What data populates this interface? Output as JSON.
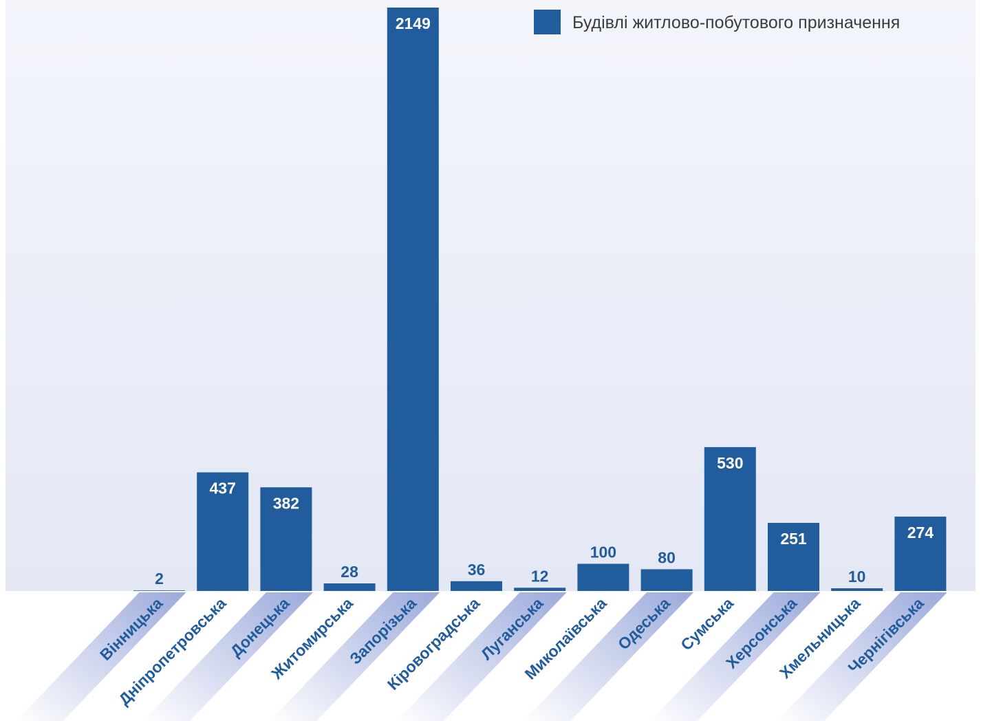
{
  "colors": {
    "bar": "#215c9c",
    "plot_bg_top": "#f3f5fb",
    "plot_bg_bottom": "#e4e8f5",
    "label_band": "#9caadb",
    "value_inside": "#ffffff",
    "value_outside": "#215c9c"
  },
  "chart_data": {
    "type": "bar",
    "title": "",
    "xlabel": "",
    "ylabel": "",
    "ylim": [
      0,
      2149
    ],
    "grid": false,
    "legend_position": "top-right",
    "categories": [
      "Вінницька",
      "Дніпропетровська",
      "Донецька",
      "Житомирська",
      "Запорізька",
      "Кіровоградська",
      "Луганська",
      "Миколаївська",
      "Одеська",
      "Сумська",
      "Херсонська",
      "Хмельницька",
      "Чернігівська"
    ],
    "series": [
      {
        "name": "Будівлі житлово-побутового призначення",
        "values": [
          2,
          437,
          382,
          28,
          2149,
          36,
          12,
          100,
          80,
          530,
          251,
          10,
          274
        ]
      }
    ]
  }
}
